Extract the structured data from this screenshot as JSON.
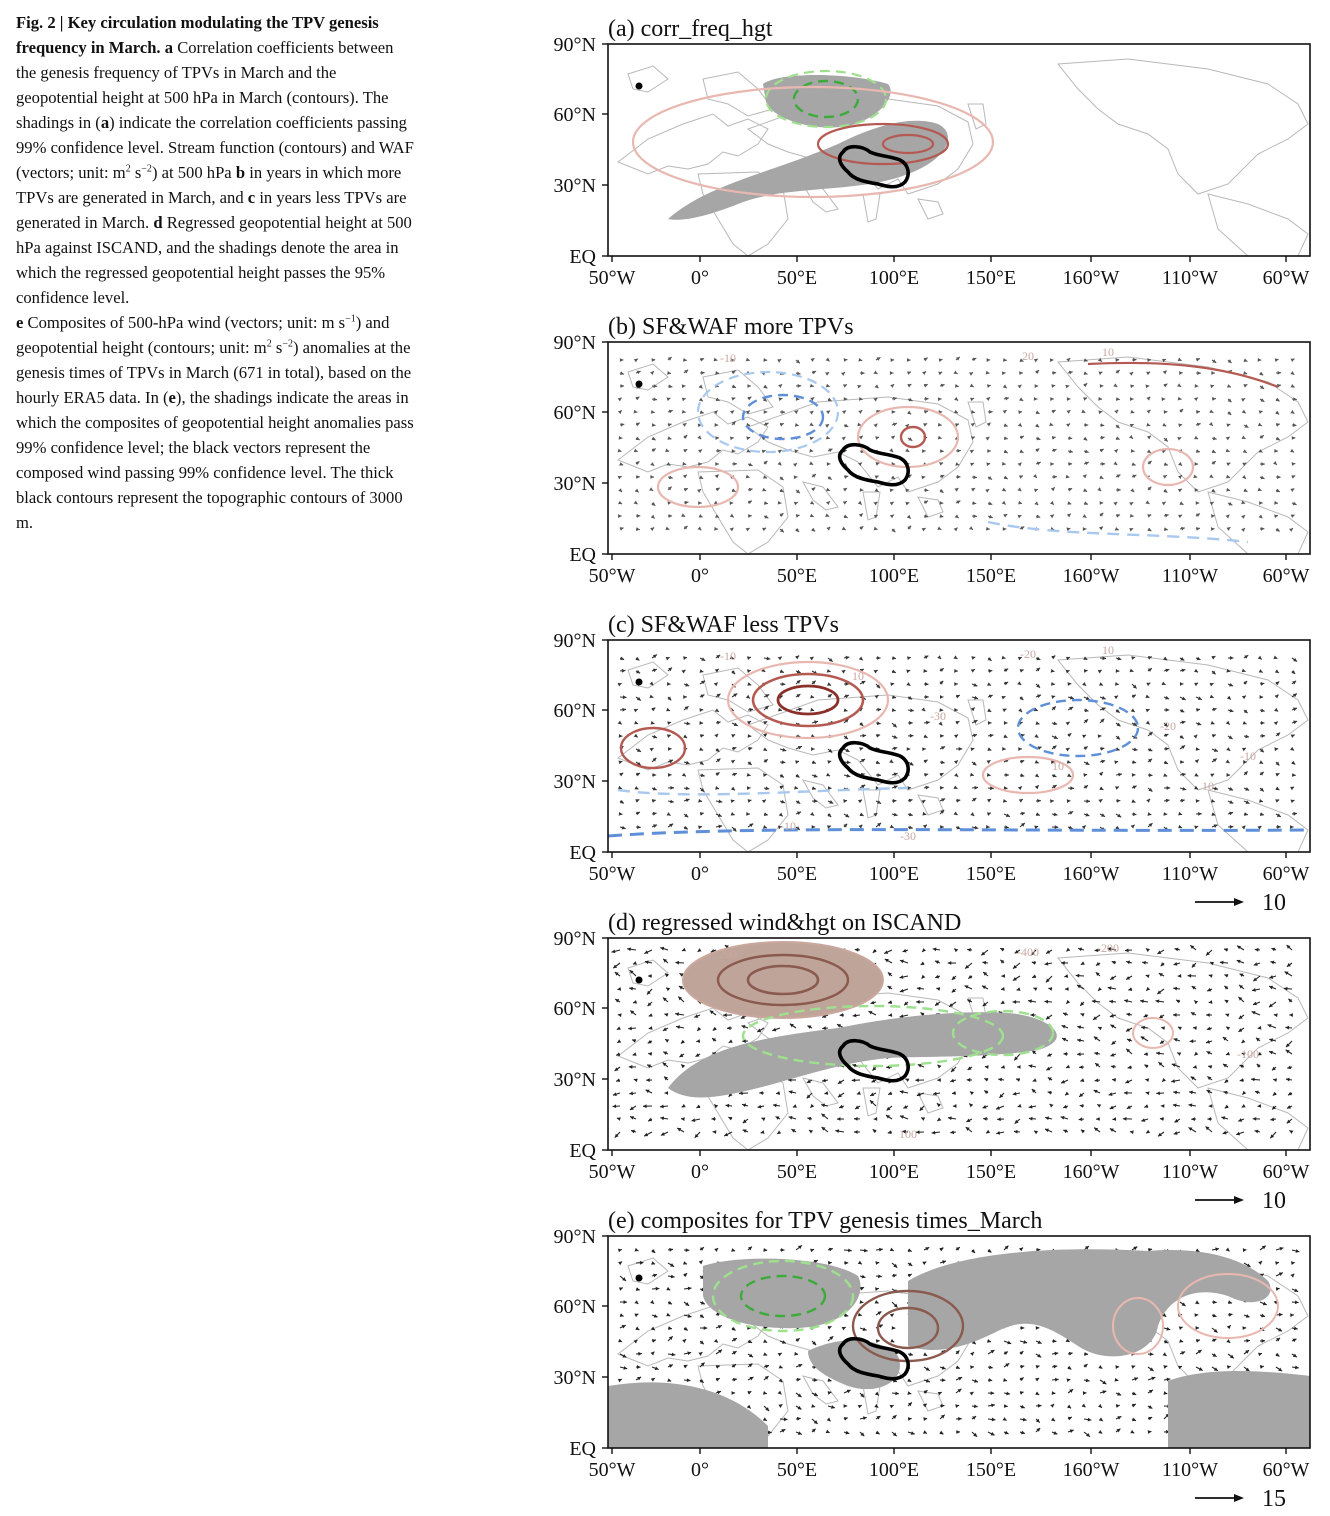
{
  "caption": {
    "fig_label": "Fig. 2 |",
    "fig_title": "Key circulation modulating the TPV genesis frequency in March.",
    "a_label": "a",
    "a_text_1": "Correlation coefficients between the genesis frequency of TPVs in March and the geopotential height at 500 hPa in March (contours). The shadings in (",
    "a_ref": "a",
    "a_text_2": ") indicate the correlation coefficients passing 99% confidence level. Stream function (contours) and WAF (vectors; unit: m",
    "sup_2": "2",
    "sup_m2": "−2",
    "sup_m1": "−1",
    "s_unit": " s",
    "b_pre": ") at 500 hPa",
    "b_label": "b",
    "b_text": "in years in which more TPVs are generated in March, and",
    "c_label": "c",
    "c_text": "in years less TPVs are generated in March.",
    "d_label": "d",
    "d_text": "Regressed geopotential height at 500 hPa against ISCAND, and the shadings denote the area in which the regressed geopotential height passes the 95% confidence level.",
    "e_label": "e",
    "e_text_1": "Composites of 500-hPa wind (vectors; unit: m s",
    "e_text_2": ") and geopotential height (contours; unit: m",
    "e_text_3": ") anomalies at the genesis times of TPVs in March (671 in total), based on the hourly ERA5 data. In (",
    "e_ref": "e",
    "e_text_4": "), the shadings indicate the areas in which the composites of geopotential height anomalies pass 99% confidence level; the black vectors represent the composed wind passing 99% confidence level. The thick black contours represent the topographic contours of 3000 m."
  },
  "figure": {
    "y_ticks": [
      "90°N",
      "60°N",
      "30°N",
      "EQ"
    ],
    "x_ticks": [
      "50°W",
      "0°",
      "50°E",
      "100°E",
      "150°E",
      "160°W",
      "110°W",
      "60°W"
    ],
    "colors": {
      "positive_contour": "#b45a52",
      "positive_light": "#e8b8b0",
      "negative_blue": "#5f8fd8",
      "negative_light_blue": "#a9c8ee",
      "negative_green": "#3daa3a",
      "negative_light_green": "#9ee08e",
      "shading": "#a6a6a6",
      "brown_contour": "#8a5a4e",
      "topography": "#000000"
    },
    "panels": [
      {
        "title": "(a) corr_freq_hgt",
        "ref_vector": "",
        "contour_labels": []
      },
      {
        "title": "(b) SF&WAF more TPVs",
        "ref_vector": "",
        "contour_labels": [
          "-10",
          "20",
          "10"
        ]
      },
      {
        "title": "(c) SF&WAF less TPVs",
        "ref_vector": "10",
        "contour_labels": [
          "-10",
          "-20",
          "10",
          "-10",
          "-30",
          "-10",
          "-20",
          "-30",
          "10",
          "10",
          "10"
        ]
      },
      {
        "title": "(d) regressed wind&hgt on ISCAND",
        "ref_vector": "10",
        "contour_labels": [
          "200",
          "-400",
          "-200",
          "-100",
          "100"
        ]
      },
      {
        "title": "(e) composites for TPV genesis times_March",
        "ref_vector": "15",
        "contour_labels": []
      }
    ]
  }
}
